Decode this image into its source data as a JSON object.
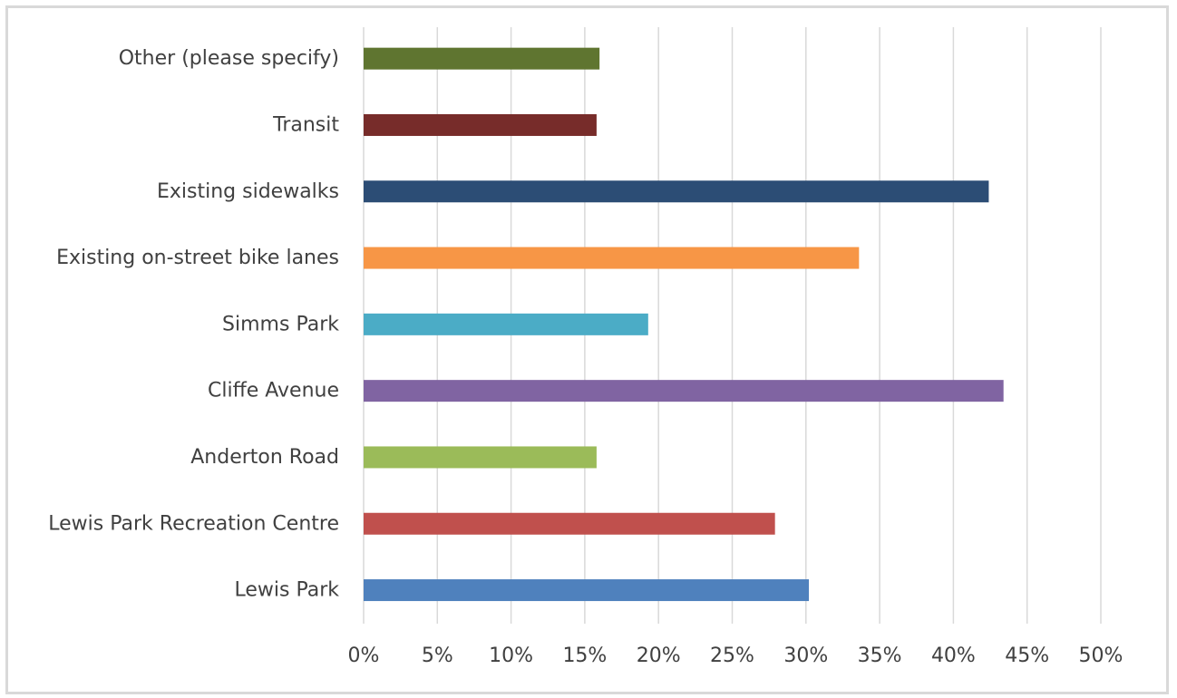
{
  "chart_data": {
    "type": "bar",
    "orientation": "horizontal",
    "categories": [
      "Lewis Park",
      "Lewis Park Recreation Centre",
      "Anderton Road",
      "Cliffe Avenue",
      "Simms Park",
      "Existing on-street bike lanes",
      "Existing sidewalks",
      "Transit",
      "Other (please specify)"
    ],
    "values": [
      30.2,
      27.9,
      15.8,
      43.4,
      19.3,
      33.6,
      42.4,
      15.8,
      16.0
    ],
    "colors": [
      "#4f81bd",
      "#c0504d",
      "#9bbb59",
      "#8064a2",
      "#4bacc6",
      "#f79646",
      "#2c4d75",
      "#772c2a",
      "#5f7530"
    ],
    "x_ticks": [
      "0%",
      "5%",
      "10%",
      "15%",
      "20%",
      "25%",
      "30%",
      "35%",
      "40%",
      "45%",
      "50%"
    ],
    "xlim": [
      0,
      50
    ],
    "grid": true,
    "legend": false,
    "title": "",
    "xlabel": "",
    "ylabel": ""
  }
}
